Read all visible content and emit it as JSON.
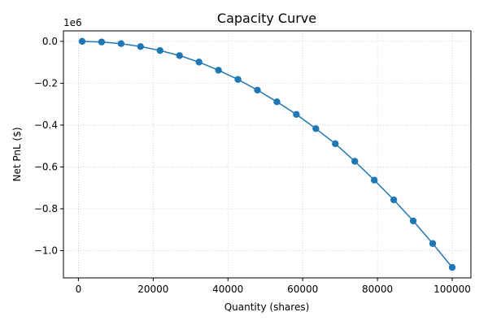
{
  "chart_data": {
    "type": "line",
    "title": "Capacity Curve",
    "xlabel": "Quantity (shares)",
    "ylabel": "Net PnL ($)",
    "y_offset_label": "1e6",
    "xlim": [
      -4000,
      105000
    ],
    "ylim": [
      -1.13,
      0.05
    ],
    "x_ticks": [
      0,
      20000,
      40000,
      60000,
      80000,
      100000
    ],
    "x_tick_labels": [
      "0",
      "20000",
      "40000",
      "60000",
      "80000",
      "100000"
    ],
    "y_ticks": [
      0.0,
      -0.2,
      -0.4,
      -0.6,
      -0.8,
      -1.0
    ],
    "y_tick_labels": [
      "0.0",
      "−0.2",
      "−0.4",
      "−0.6",
      "−0.8",
      "−1.0"
    ],
    "grid": true,
    "marker": "circle",
    "color": "#1f77b4",
    "series": [
      {
        "x": [
          1000,
          6210,
          11420,
          16630,
          21840,
          27050,
          32260,
          37470,
          42680,
          47890,
          53100,
          58310,
          63520,
          68730,
          73940,
          79150,
          84360,
          89570,
          94780,
          100000
        ],
        "values": [
          0.0,
          -0.003,
          -0.011,
          -0.025,
          -0.044,
          -0.068,
          -0.099,
          -0.138,
          -0.182,
          -0.233,
          -0.289,
          -0.349,
          -0.417,
          -0.489,
          -0.573,
          -0.663,
          -0.757,
          -0.858,
          -0.966,
          -1.08
        ]
      }
    ]
  }
}
